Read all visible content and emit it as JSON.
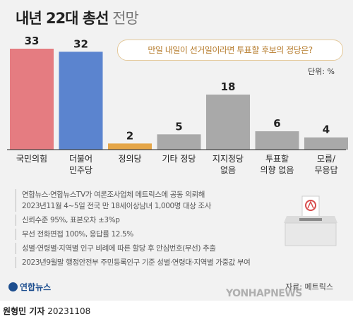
{
  "title_bold": "내년 22대 총선",
  "title_light": "전망",
  "question": "만일 내일이 선거일이라면 투표할 후보의 정당은?",
  "unit_label": "단위: %",
  "colors": {
    "background": "#f2f2f2",
    "bar_ppp": "#e57c81",
    "bar_democratic": "#5b84cf",
    "bar_justice": "#e5a648",
    "bar_other": "#a9a9a9",
    "question_text": "#b57a2a"
  },
  "chart_data": {
    "type": "bar",
    "title": "내년 22대 총선 전망",
    "categories": [
      "국민의힘",
      "더불어 민주당",
      "정의당",
      "기타 정당",
      "지지정당 없음",
      "투표할 의향 없음",
      "모름/ 무응답"
    ],
    "category_lines": [
      [
        "국민의힘"
      ],
      [
        "더불어",
        "민주당"
      ],
      [
        "정의당"
      ],
      [
        "기타 정당"
      ],
      [
        "지지정당",
        "없음"
      ],
      [
        "투표할",
        "의향 없음"
      ],
      [
        "모름/",
        "무응답"
      ]
    ],
    "values": [
      33,
      32,
      2,
      5,
      18,
      6,
      4
    ],
    "colors": [
      "#e57c81",
      "#5b84cf",
      "#e5a648",
      "#a9a9a9",
      "#a9a9a9",
      "#a9a9a9",
      "#a9a9a9"
    ],
    "ylim": [
      0,
      33
    ],
    "grid": false,
    "unit": "%"
  },
  "notes": [
    [
      "연합뉴스·연합뉴스TV가 여론조사업체 메트릭스에 공동 의뢰해",
      "2023년11월 4~5일 전국 만 18세이상남녀 1,000명 대상 조사"
    ],
    [
      "신뢰수준 95%, 표본오차 ±3%p"
    ],
    [
      "무선 전화면접 100%, 응답률 12.5%"
    ],
    [
      "성별·연령별·지역별 인구 비례에 따른 할당 후 안심번호(무선) 추출"
    ],
    [
      "2023년9월말 행정안전부 주민등록인구 기준 성별·연령대·지역별 가중값 부여"
    ]
  ],
  "logo_text": "연합뉴스",
  "source": "자료: 메트릭스",
  "watermark": "YONHAPNEWS",
  "byline": {
    "author": "원형민 기자",
    "date": "20231108"
  }
}
